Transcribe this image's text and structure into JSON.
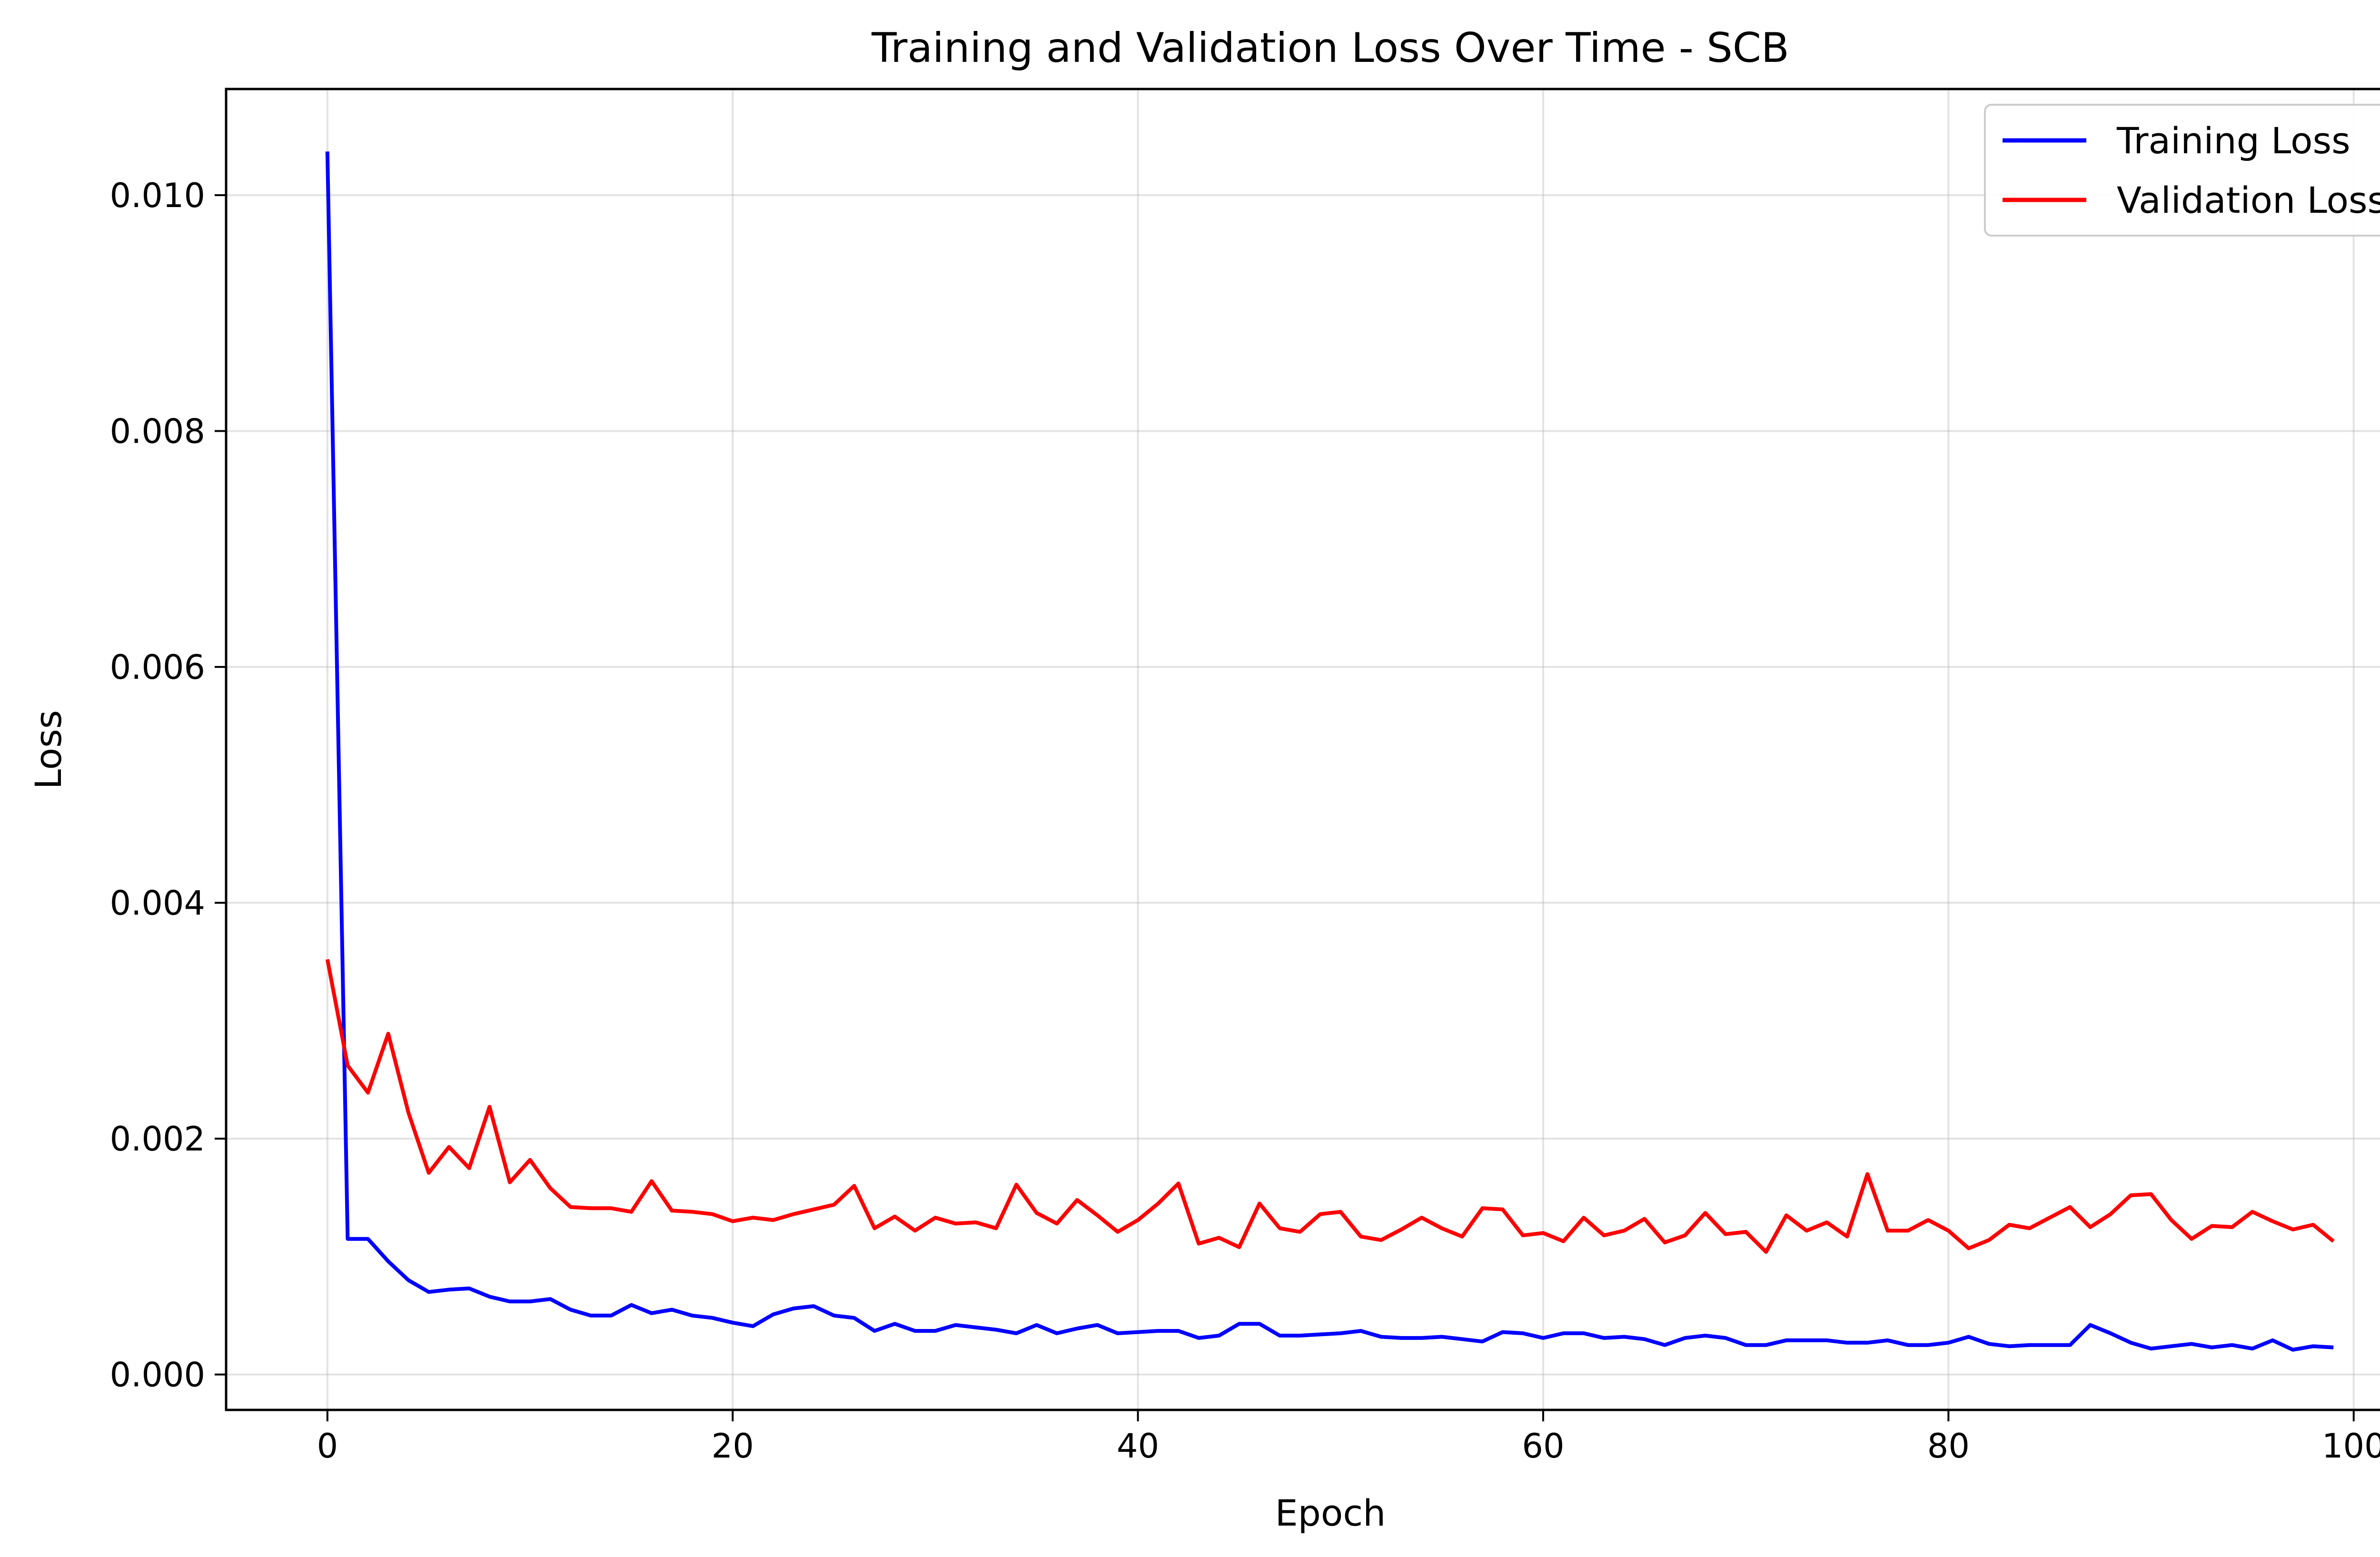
{
  "chart_data": {
    "type": "line",
    "title": "Training and Validation Loss Over Time - SCB",
    "xlabel": "Epoch",
    "ylabel": "Loss",
    "xlim": [
      -5,
      104
    ],
    "ylim": [
      -0.0003,
      0.0109
    ],
    "xticks": [
      0,
      20,
      40,
      60,
      80,
      100
    ],
    "xtick_labels": [
      "0",
      "20",
      "40",
      "60",
      "80",
      "100"
    ],
    "yticks": [
      0.0,
      0.002,
      0.004,
      0.006,
      0.008,
      0.01
    ],
    "ytick_labels": [
      "0.000",
      "0.002",
      "0.004",
      "0.006",
      "0.008",
      "0.010"
    ],
    "grid": true,
    "legend_position": "top-right",
    "series": [
      {
        "name": "Training Loss",
        "color": "#0000ff",
        "x": [
          0,
          1,
          2,
          3,
          4,
          5,
          6,
          7,
          8,
          9,
          10,
          11,
          12,
          13,
          14,
          15,
          16,
          17,
          18,
          19,
          20,
          21,
          22,
          23,
          24,
          25,
          26,
          27,
          28,
          29,
          30,
          31,
          32,
          33,
          34,
          35,
          36,
          37,
          38,
          39,
          40,
          41,
          42,
          43,
          44,
          45,
          46,
          47,
          48,
          49,
          50,
          51,
          52,
          53,
          54,
          55,
          56,
          57,
          58,
          59,
          60,
          61,
          62,
          63,
          64,
          65,
          66,
          67,
          68,
          69,
          70,
          71,
          72,
          73,
          74,
          75,
          76,
          77,
          78,
          79,
          80,
          81,
          82,
          83,
          84,
          85,
          86,
          87,
          88,
          89,
          90,
          91,
          92,
          93,
          94,
          95,
          96,
          97,
          98,
          99
        ],
        "values": [
          0.01037,
          0.00115,
          0.00115,
          0.00096,
          0.0008,
          0.0007,
          0.00072,
          0.00073,
          0.00066,
          0.00062,
          0.00062,
          0.00064,
          0.00055,
          0.0005,
          0.0005,
          0.00059,
          0.00052,
          0.00055,
          0.0005,
          0.00048,
          0.00044,
          0.00041,
          0.00051,
          0.00056,
          0.00058,
          0.0005,
          0.00048,
          0.00037,
          0.00043,
          0.00037,
          0.00037,
          0.00042,
          0.0004,
          0.00038,
          0.00035,
          0.00042,
          0.00035,
          0.00039,
          0.00042,
          0.00035,
          0.00036,
          0.00037,
          0.00037,
          0.00031,
          0.00033,
          0.00043,
          0.00043,
          0.00033,
          0.00033,
          0.00034,
          0.00035,
          0.00037,
          0.00032,
          0.00031,
          0.00031,
          0.00032,
          0.0003,
          0.00028,
          0.00036,
          0.00035,
          0.00031,
          0.00035,
          0.00035,
          0.00031,
          0.00032,
          0.0003,
          0.00025,
          0.00031,
          0.00033,
          0.00031,
          0.00025,
          0.00025,
          0.00029,
          0.00029,
          0.00029,
          0.00027,
          0.00027,
          0.00029,
          0.00025,
          0.00025,
          0.00027,
          0.00032,
          0.00026,
          0.00024,
          0.00025,
          0.00025,
          0.00025,
          0.00042,
          0.00035,
          0.00027,
          0.00022,
          0.00024,
          0.00026,
          0.00023,
          0.00025,
          0.00022,
          0.00029,
          0.00021,
          0.00024,
          0.00023
        ]
      },
      {
        "name": "Validation Loss",
        "color": "#ff0000",
        "x": [
          0,
          1,
          2,
          3,
          4,
          5,
          6,
          7,
          8,
          9,
          10,
          11,
          12,
          13,
          14,
          15,
          16,
          17,
          18,
          19,
          20,
          21,
          22,
          23,
          24,
          25,
          26,
          27,
          28,
          29,
          30,
          31,
          32,
          33,
          34,
          35,
          36,
          37,
          38,
          39,
          40,
          41,
          42,
          43,
          44,
          45,
          46,
          47,
          48,
          49,
          50,
          51,
          52,
          53,
          54,
          55,
          56,
          57,
          58,
          59,
          60,
          61,
          62,
          63,
          64,
          65,
          66,
          67,
          68,
          69,
          70,
          71,
          72,
          73,
          74,
          75,
          76,
          77,
          78,
          79,
          80,
          81,
          82,
          83,
          84,
          85,
          86,
          87,
          88,
          89,
          90,
          91,
          92,
          93,
          94,
          95,
          96,
          97,
          98,
          99
        ],
        "values": [
          0.00352,
          0.00262,
          0.00239,
          0.00289,
          0.00222,
          0.00171,
          0.00193,
          0.00175,
          0.00227,
          0.00163,
          0.00182,
          0.00158,
          0.00142,
          0.00141,
          0.00141,
          0.00138,
          0.00164,
          0.00139,
          0.00138,
          0.00136,
          0.0013,
          0.00133,
          0.00131,
          0.00136,
          0.0014,
          0.00144,
          0.0016,
          0.00124,
          0.00134,
          0.00122,
          0.00133,
          0.00128,
          0.00129,
          0.00124,
          0.00161,
          0.00137,
          0.00128,
          0.00148,
          0.00135,
          0.00121,
          0.00131,
          0.00145,
          0.00162,
          0.00111,
          0.00116,
          0.00108,
          0.00145,
          0.00124,
          0.00121,
          0.00136,
          0.00138,
          0.00117,
          0.00114,
          0.00123,
          0.00133,
          0.00124,
          0.00117,
          0.00141,
          0.0014,
          0.00118,
          0.0012,
          0.00113,
          0.00133,
          0.00118,
          0.00122,
          0.00132,
          0.00112,
          0.00118,
          0.00137,
          0.00119,
          0.00121,
          0.00104,
          0.00135,
          0.00122,
          0.00129,
          0.00117,
          0.0017,
          0.00122,
          0.00122,
          0.00131,
          0.00122,
          0.00107,
          0.00114,
          0.00127,
          0.00124,
          0.00133,
          0.00142,
          0.00125,
          0.00136,
          0.00152,
          0.00153,
          0.00131,
          0.00115,
          0.00126,
          0.00125,
          0.00138,
          0.0013,
          0.00123,
          0.00127,
          0.00113
        ]
      }
    ]
  }
}
